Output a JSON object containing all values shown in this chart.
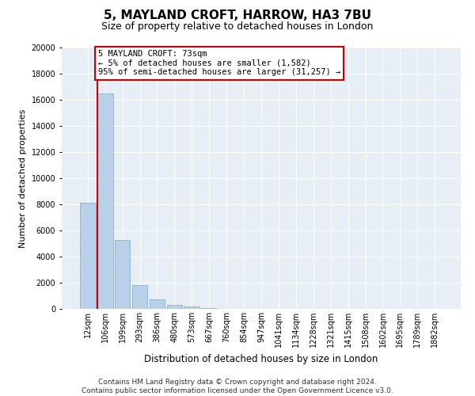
{
  "title": "5, MAYLAND CROFT, HARROW, HA3 7BU",
  "subtitle": "Size of property relative to detached houses in London",
  "xlabel": "Distribution of detached houses by size in London",
  "ylabel": "Number of detached properties",
  "categories": [
    "12sqm",
    "106sqm",
    "199sqm",
    "293sqm",
    "386sqm",
    "480sqm",
    "573sqm",
    "667sqm",
    "760sqm",
    "854sqm",
    "947sqm",
    "1041sqm",
    "1134sqm",
    "1228sqm",
    "1321sqm",
    "1415sqm",
    "1508sqm",
    "1602sqm",
    "1695sqm",
    "1789sqm",
    "1882sqm"
  ],
  "values": [
    8100,
    16500,
    5300,
    1800,
    700,
    280,
    160,
    80,
    0,
    0,
    0,
    0,
    0,
    0,
    0,
    0,
    0,
    0,
    0,
    0,
    0
  ],
  "bar_color": "#b8d0e8",
  "bar_edge_color": "#7aaacb",
  "highlight_color": "#cc0000",
  "red_line_x": 0.545,
  "annotation_text": "5 MAYLAND CROFT: 73sqm\n← 5% of detached houses are smaller (1,582)\n95% of semi-detached houses are larger (31,257) →",
  "annotation_box_color": "#ffffff",
  "annotation_box_edge": "#cc0000",
  "ylim": [
    0,
    20000
  ],
  "yticks": [
    0,
    2000,
    4000,
    6000,
    8000,
    10000,
    12000,
    14000,
    16000,
    18000,
    20000
  ],
  "background_color": "#e8eef5",
  "footer": "Contains HM Land Registry data © Crown copyright and database right 2024.\nContains public sector information licensed under the Open Government Licence v3.0.",
  "title_fontsize": 11,
  "subtitle_fontsize": 9,
  "xlabel_fontsize": 8.5,
  "ylabel_fontsize": 8,
  "tick_fontsize": 7,
  "footer_fontsize": 6.5
}
